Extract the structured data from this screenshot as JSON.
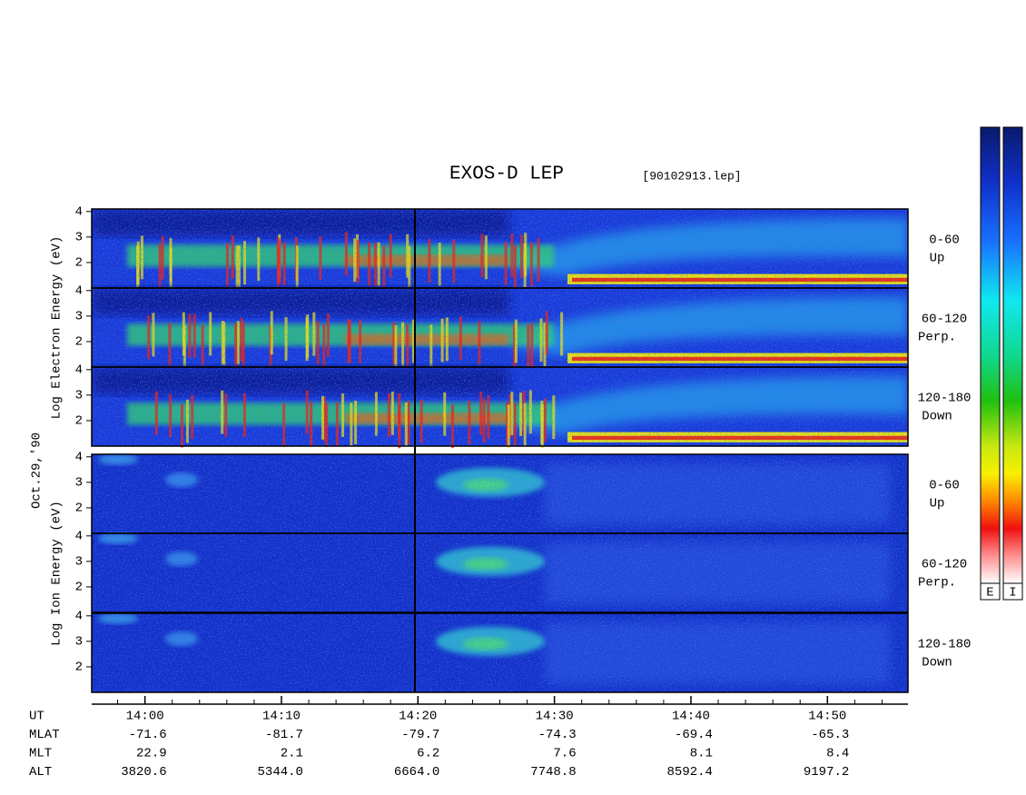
{
  "title": "EXOS-D LEP",
  "file": "[90102913.lep]",
  "date": "Oct.29,'90",
  "ylim": [
    1,
    4.1
  ],
  "yticks": [
    2,
    3,
    4
  ],
  "xlim": [
    836.1,
    895.9
  ],
  "xticks": [
    {
      "value": 840,
      "label": "14:00"
    },
    {
      "value": 850,
      "label": "14:10"
    },
    {
      "value": 860,
      "label": "14:20"
    },
    {
      "value": 870,
      "label": "14:30"
    },
    {
      "value": 880,
      "label": "14:40"
    },
    {
      "value": 890,
      "label": "14:50"
    }
  ],
  "groups": [
    {
      "label": "Log Electron Energy (eV)",
      "panels": [
        {
          "angle": "0-60",
          "dir": "Up"
        },
        {
          "angle": "60-120",
          "dir": "Perp."
        },
        {
          "angle": "120-180",
          "dir": "Down"
        }
      ]
    },
    {
      "label": "Log Ion Energy (eV)",
      "panels": [
        {
          "angle": "0-60",
          "dir": "Up"
        },
        {
          "angle": "60-120",
          "dir": "Perp."
        },
        {
          "angle": "120-180",
          "dir": "Down"
        }
      ]
    }
  ],
  "colorbars": [
    "E",
    "I"
  ],
  "ephemeris": {
    "labels": [
      "UT",
      "MLAT",
      "MLT",
      "ALT"
    ],
    "rows": [
      [
        "-71.6",
        "-81.7",
        "-79.7",
        "-74.3",
        "-69.4",
        "-65.3"
      ],
      [
        "22.9",
        "2.1",
        "6.2",
        "7.6",
        "8.1",
        "8.4"
      ],
      [
        "3820.6",
        "5344.0",
        "6664.0",
        "7748.8",
        "8592.4",
        "9197.2"
      ]
    ]
  }
}
